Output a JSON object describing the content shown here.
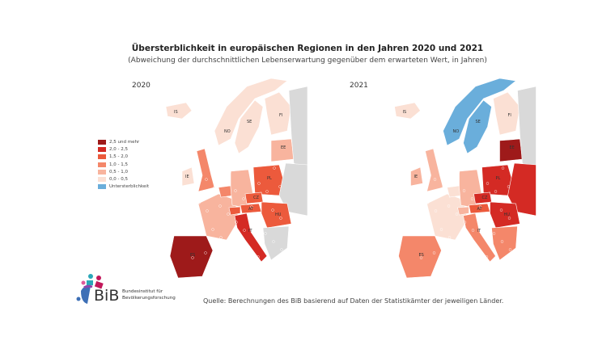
{
  "title": "Übersterblichkeit in europäischen Regionen in den Jahren 2020 und 2021",
  "subtitle": "(Abweichung der durchschnittlichen Lebenserwartung gegenüber dem erwarteten Wert, in Jahren)",
  "maps": [
    {
      "year": "2020",
      "labels": [
        "IS",
        "FI",
        "SE",
        "NO",
        "EE",
        "LV",
        "IE",
        "PL",
        "CZ",
        "AT",
        "HU",
        "IT",
        "ES"
      ]
    },
    {
      "year": "2021",
      "labels": [
        "IS",
        "FI",
        "SE",
        "NO",
        "EE",
        "LV",
        "IE",
        "PL",
        "CZ",
        "AT",
        "HU",
        "IT",
        "ES"
      ]
    }
  ],
  "legend": [
    {
      "label": "2,5 und mehr",
      "color": "#9e1a1a"
    },
    {
      "label": "2,0 - 2,5",
      "color": "#d42a24"
    },
    {
      "label": "1,5 - 2,0",
      "color": "#ec5a3c"
    },
    {
      "label": "1,0 - 1,5",
      "color": "#f4876a"
    },
    {
      "label": "0,5 - 1,0",
      "color": "#f8b49e"
    },
    {
      "label": "0,0 - 0,5",
      "color": "#fbe0d4"
    },
    {
      "label": "Untersterblichkeit",
      "color": "#6aaedb"
    }
  ],
  "no_data_color": "#d9d9d9",
  "source": "Quelle: Berechnungen des BiB basierend auf Daten der Statistikämter der jeweiligen Länder.",
  "logo": {
    "abbr": "BiB",
    "line1": "Bundesinstitut für",
    "line2": "Bevölkerungsforschung"
  }
}
